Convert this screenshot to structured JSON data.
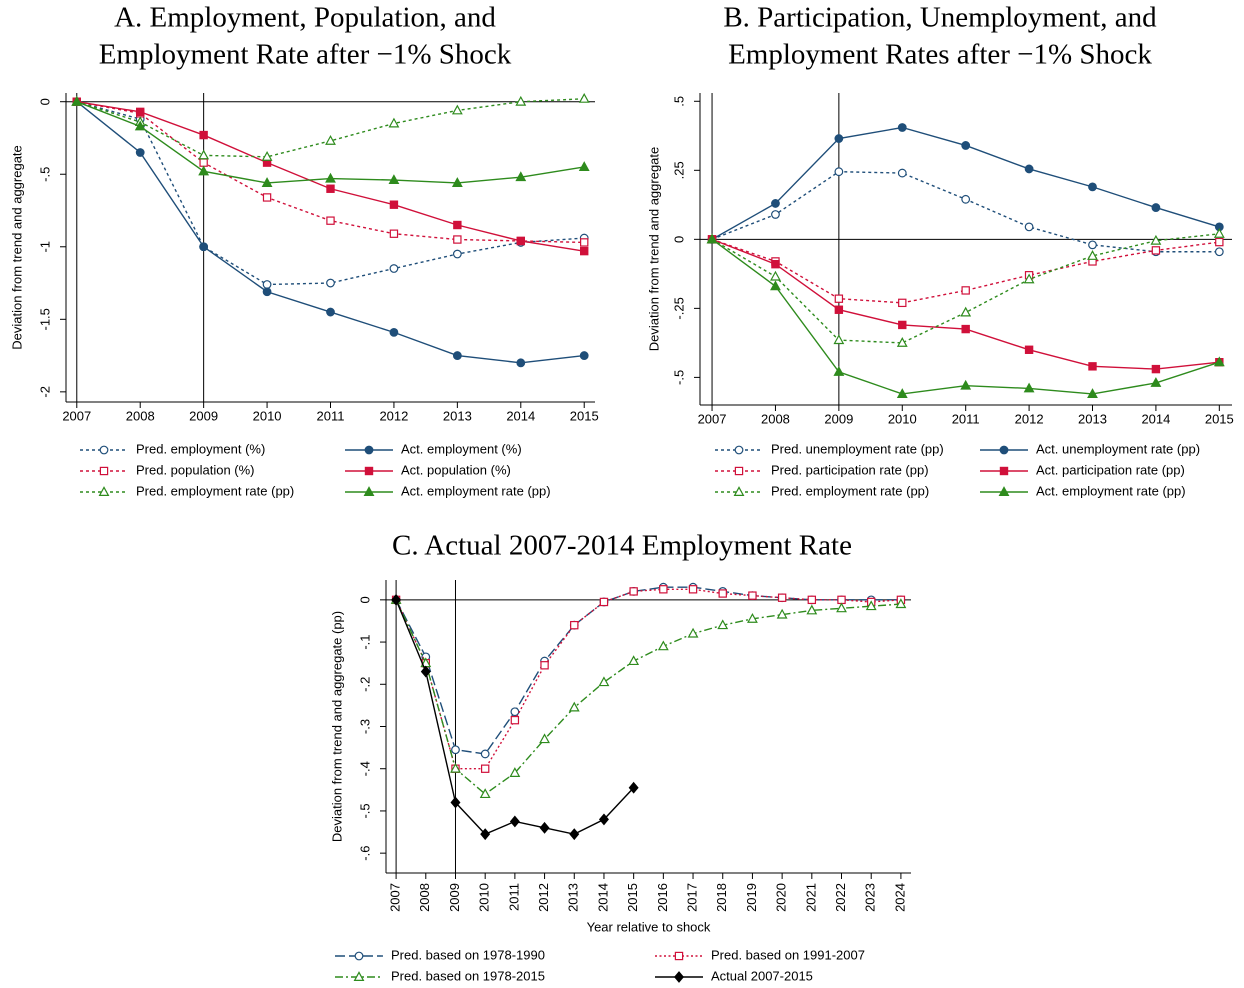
{
  "chart_data": [
    {
      "type": "line",
      "title": [
        "A. Employment, Population, and",
        "Employment Rate after −1% Shock"
      ],
      "ylabel": "Deviation from trend and aggregate",
      "x": [
        2007,
        2008,
        2009,
        2010,
        2011,
        2012,
        2013,
        2014,
        2015
      ],
      "xlim": [
        2006.83,
        2015.17
      ],
      "xticks": [
        2007,
        2008,
        2009,
        2010,
        2011,
        2012,
        2013,
        2014,
        2015
      ],
      "ylim": [
        -2.07,
        0.06
      ],
      "yticks": [
        0,
        {
          "value": -0.5,
          "label": "-.5"
        },
        -1,
        -1.5,
        -2
      ],
      "xlines": [
        2007,
        2009
      ],
      "ylines": [
        0
      ],
      "series": [
        {
          "name": "Pred. employment (%)",
          "color": "#1f4e79",
          "line_style": "dash",
          "marker": "circle",
          "marker_fill": "hollow",
          "values": [
            0,
            -0.12,
            -1.0,
            -1.26,
            -1.25,
            -1.15,
            -1.05,
            -0.97,
            -0.94
          ]
        },
        {
          "name": "Act. employment (%)",
          "color": "#1f4e79",
          "line_style": "solid",
          "marker": "circle",
          "marker_fill": "solid",
          "values": [
            0,
            -0.35,
            -1.0,
            -1.31,
            -1.45,
            -1.59,
            -1.75,
            -1.8,
            -1.75
          ]
        },
        {
          "name": "Pred. population (%)",
          "color": "#d0103a",
          "line_style": "dash",
          "marker": "square",
          "marker_fill": "hollow",
          "values": [
            0,
            -0.08,
            -0.42,
            -0.66,
            -0.82,
            -0.91,
            -0.95,
            -0.96,
            -0.97
          ]
        },
        {
          "name": "Act. population (%)",
          "color": "#d0103a",
          "line_style": "solid",
          "marker": "square",
          "marker_fill": "solid",
          "values": [
            0,
            -0.07,
            -0.23,
            -0.42,
            -0.6,
            -0.71,
            -0.85,
            -0.96,
            -1.03
          ]
        },
        {
          "name": "Pred. employment rate (pp)",
          "color": "#2e8b1d",
          "line_style": "dash",
          "marker": "triangle",
          "marker_fill": "hollow",
          "values": [
            0,
            -0.14,
            -0.37,
            -0.38,
            -0.27,
            -0.15,
            -0.06,
            0.0,
            0.02
          ]
        },
        {
          "name": "Act. employment rate (pp)",
          "color": "#2e8b1d",
          "line_style": "solid",
          "marker": "triangle",
          "marker_fill": "solid",
          "values": [
            0,
            -0.17,
            -0.48,
            -0.56,
            -0.53,
            -0.54,
            -0.56,
            -0.52,
            -0.45
          ]
        }
      ]
    },
    {
      "type": "line",
      "title": [
        "B. Participation, Unemployment, and",
        "Employment Rates after −1% Shock"
      ],
      "ylabel": "Deviation from trend and aggregate",
      "x": [
        2007,
        2008,
        2009,
        2010,
        2011,
        2012,
        2013,
        2014,
        2015
      ],
      "xlim": [
        2006.81,
        2015.2
      ],
      "xticks": [
        2007,
        2008,
        2009,
        2010,
        2011,
        2012,
        2013,
        2014,
        2015
      ],
      "ylim": [
        -0.6,
        0.53
      ],
      "yticks": [
        {
          "value": 0.5,
          "label": ".5"
        },
        {
          "value": 0.25,
          "label": ".25"
        },
        0,
        {
          "value": -0.25,
          "label": "-.25"
        },
        {
          "value": -0.5,
          "label": "-.5"
        }
      ],
      "xlines": [
        2007,
        2009
      ],
      "ylines": [
        0
      ],
      "series": [
        {
          "name": "Pred. unemployment rate (pp)",
          "color": "#1f4e79",
          "line_style": "dash",
          "marker": "circle",
          "marker_fill": "hollow",
          "values": [
            0,
            0.09,
            0.245,
            0.24,
            0.145,
            0.045,
            -0.02,
            -0.045,
            -0.045
          ]
        },
        {
          "name": "Act. unemployment rate (pp)",
          "color": "#1f4e79",
          "line_style": "solid",
          "marker": "circle",
          "marker_fill": "solid",
          "values": [
            0,
            0.13,
            0.365,
            0.405,
            0.34,
            0.255,
            0.19,
            0.115,
            0.045
          ]
        },
        {
          "name": "Pred. participation rate (pp)",
          "color": "#d0103a",
          "line_style": "dash",
          "marker": "square",
          "marker_fill": "hollow",
          "values": [
            0,
            -0.08,
            -0.215,
            -0.23,
            -0.185,
            -0.13,
            -0.08,
            -0.04,
            -0.01
          ]
        },
        {
          "name": "Act. participation rate (pp)",
          "color": "#d0103a",
          "line_style": "solid",
          "marker": "square",
          "marker_fill": "solid",
          "values": [
            0,
            -0.09,
            -0.255,
            -0.31,
            -0.325,
            -0.4,
            -0.46,
            -0.47,
            -0.445
          ]
        },
        {
          "name": "Pred. employment rate (pp)",
          "color": "#2e8b1d",
          "line_style": "dash",
          "marker": "triangle",
          "marker_fill": "hollow",
          "values": [
            0,
            -0.135,
            -0.365,
            -0.375,
            -0.265,
            -0.145,
            -0.06,
            -0.005,
            0.02
          ]
        },
        {
          "name": "Act. employment rate (pp)",
          "color": "#2e8b1d",
          "line_style": "solid",
          "marker": "triangle",
          "marker_fill": "solid",
          "values": [
            0,
            -0.17,
            -0.48,
            -0.56,
            -0.53,
            -0.54,
            -0.56,
            -0.52,
            -0.445
          ]
        }
      ]
    },
    {
      "type": "line",
      "title": [
        "C. Actual 2007-2014 Employment Rate"
      ],
      "ylabel": "Deviation from trend and aggregate (pp)",
      "xlabel": "Year relative to shock",
      "x": [
        2007,
        2008,
        2009,
        2010,
        2011,
        2012,
        2013,
        2014,
        2015,
        2016,
        2017,
        2018,
        2019,
        2020,
        2021,
        2022,
        2023,
        2024
      ],
      "xlim": [
        2006.66,
        2024.34
      ],
      "xticks": [
        2007,
        2008,
        2009,
        2010,
        2011,
        2012,
        2013,
        2014,
        2015,
        2016,
        2017,
        2018,
        2019,
        2020,
        2021,
        2022,
        2023,
        2024
      ],
      "ylim": [
        -0.647,
        0.047
      ],
      "yticks": [
        0,
        {
          "value": -0.1,
          "label": "-.1"
        },
        {
          "value": -0.2,
          "label": "-.2"
        },
        {
          "value": -0.3,
          "label": "-.3"
        },
        {
          "value": -0.4,
          "label": "-.4"
        },
        {
          "value": -0.5,
          "label": "-.5"
        },
        {
          "value": -0.6,
          "label": "-.6"
        }
      ],
      "xlines": [
        2007,
        2009
      ],
      "ylines": [
        0
      ],
      "series": [
        {
          "name": "Pred. based on 1978-1990",
          "color": "#1f4e79",
          "line_style": "longdash",
          "marker": "circle",
          "marker_fill": "hollow",
          "values": [
            0,
            -0.135,
            -0.355,
            -0.365,
            -0.265,
            -0.145,
            -0.06,
            -0.005,
            0.02,
            0.03,
            0.03,
            0.02,
            0.01,
            0.005,
            0.0,
            0.0,
            0.0,
            0.0
          ]
        },
        {
          "name": "Pred. based on 1991-2007",
          "color": "#d0103a",
          "line_style": "dot",
          "marker": "square",
          "marker_fill": "hollow",
          "values": [
            0,
            -0.15,
            -0.4,
            -0.4,
            -0.285,
            -0.155,
            -0.06,
            -0.005,
            0.02,
            0.025,
            0.025,
            0.015,
            0.01,
            0.005,
            0.0,
            0.0,
            -0.005,
            0.0
          ]
        },
        {
          "name": "Pred. based on 1978-2015",
          "color": "#2e8b1d",
          "line_style": "dashdot",
          "marker": "triangle",
          "marker_fill": "hollow",
          "values": [
            0,
            -0.15,
            -0.4,
            -0.46,
            -0.41,
            -0.33,
            -0.255,
            -0.195,
            -0.145,
            -0.11,
            -0.08,
            -0.06,
            -0.045,
            -0.035,
            -0.025,
            -0.02,
            -0.015,
            -0.01
          ]
        },
        {
          "name": "Actual 2007-2015",
          "color": "#000000",
          "line_style": "solid",
          "marker": "diamond",
          "marker_fill": "solid",
          "values": [
            0,
            -0.17,
            -0.48,
            -0.555,
            -0.525,
            -0.54,
            -0.555,
            -0.52,
            -0.445,
            null,
            null,
            null,
            null,
            null,
            null,
            null,
            null,
            null
          ]
        }
      ]
    }
  ]
}
